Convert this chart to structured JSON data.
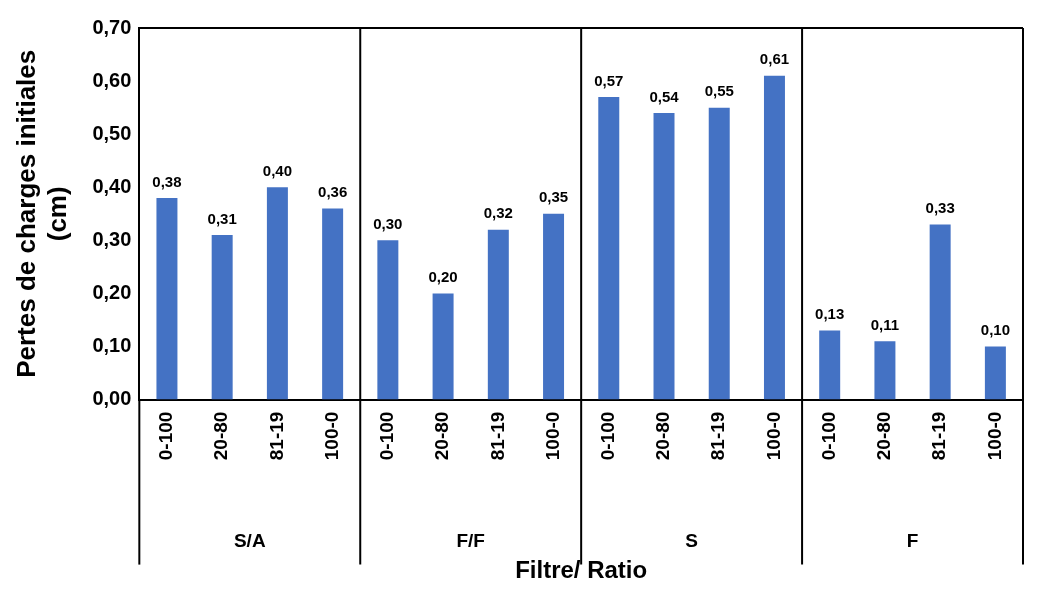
{
  "chart_data": {
    "type": "bar",
    "xlabel": "Filtre/ Ratio",
    "ylabel": "Pertes de charges initiales (cm)",
    "categories": [
      "0-100",
      "20-80",
      "81-19",
      "100-0",
      "0-100",
      "20-80",
      "81-19",
      "100-0",
      "0-100",
      "20-80",
      "81-19",
      "100-0",
      "0-100",
      "20-80",
      "81-19",
      "100-0"
    ],
    "values": [
      0.38,
      0.31,
      0.4,
      0.36,
      0.3,
      0.2,
      0.32,
      0.35,
      0.57,
      0.54,
      0.55,
      0.61,
      0.13,
      0.11,
      0.33,
      0.1
    ],
    "value_labels": [
      "0,38",
      "0,31",
      "0,40",
      "0,36",
      "0,30",
      "0,20",
      "0,32",
      "0,35",
      "0,57",
      "0,54",
      "0,55",
      "0,61",
      "0,13",
      "0,11",
      "0,33",
      "0,10"
    ],
    "color": "#4472c4",
    "ylim": [
      0,
      0.7
    ],
    "yticks": [
      {
        "value": 0,
        "label": "0,00"
      },
      {
        "value": 0.1,
        "label": "0,10"
      },
      {
        "value": 0.2,
        "label": "0,20"
      },
      {
        "value": 0.3,
        "label": "0,30"
      },
      {
        "value": 0.4,
        "label": "0,40"
      },
      {
        "value": 0.5,
        "label": "0,50"
      },
      {
        "value": 0.6,
        "label": "0,60"
      },
      {
        "value": 0.7,
        "label": "0,70"
      }
    ],
    "annotations": [
      "S/A",
      "F/F",
      "S",
      "F"
    ],
    "grid": false,
    "legend": false
  }
}
